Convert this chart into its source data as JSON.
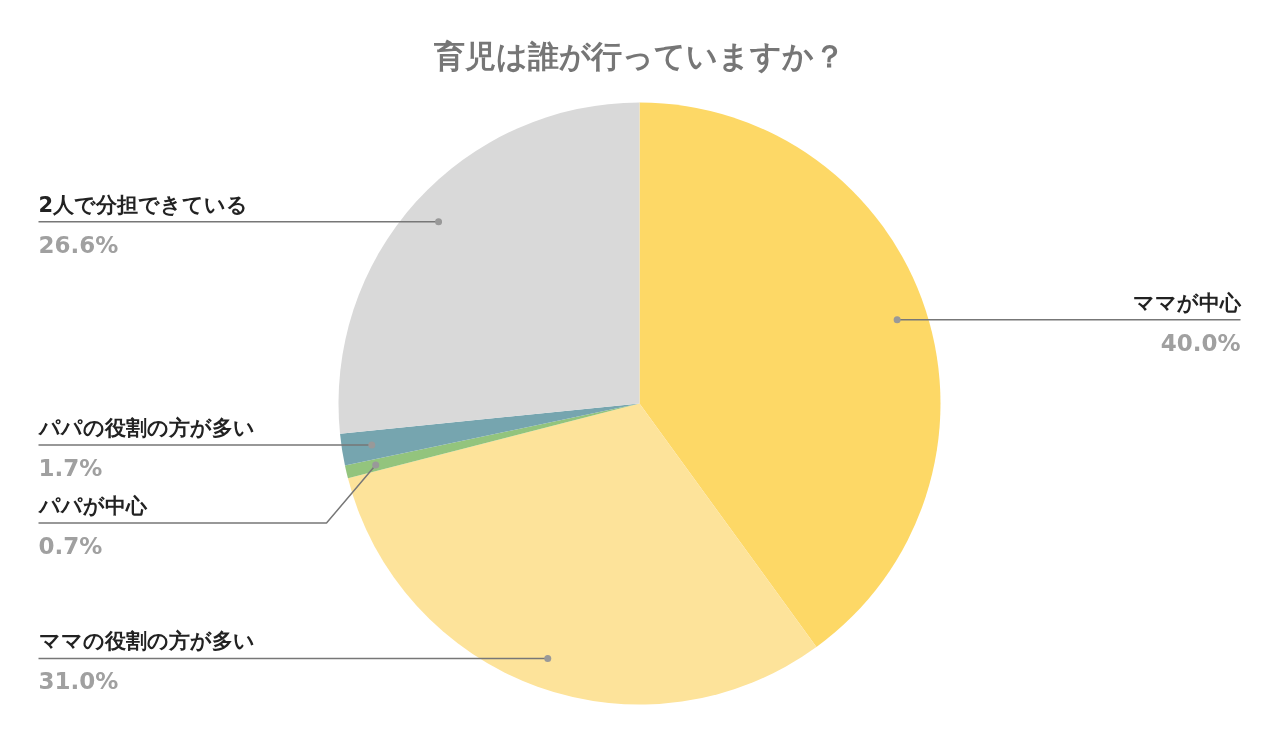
{
  "chart_data": {
    "type": "pie",
    "title": "育児は誰が行っていますか？",
    "categories": [
      "ママが中心",
      "ママの役割の方が多い",
      "パパが中心",
      "パパの役割の方が多い",
      "2人で分担できている"
    ],
    "values": [
      40.0,
      31.0,
      0.7,
      1.7,
      26.6
    ],
    "colors": [
      "#fdd866",
      "#fde39a",
      "#93c47d",
      "#76a5af",
      "#d9d9d9"
    ],
    "data_labels": true,
    "value_labels": [
      "40.0%",
      "31.0%",
      "0.7%",
      "1.7%",
      "26.6%"
    ]
  }
}
